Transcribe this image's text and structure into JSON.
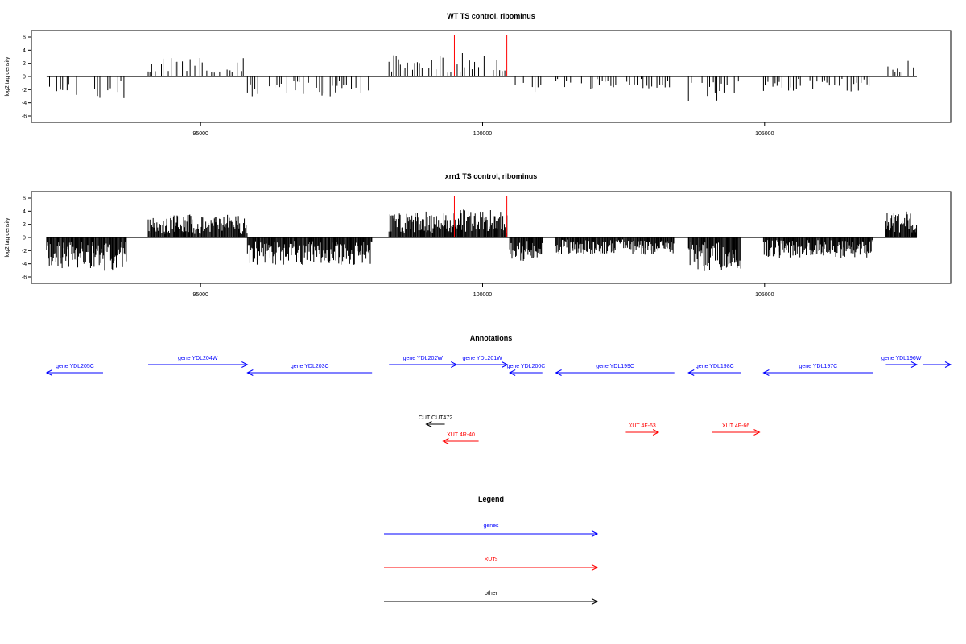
{
  "colors": {
    "gene": "#0000ff",
    "xut": "#ff0000",
    "other": "#000000",
    "marker": "#ff0000",
    "bar": "#000000"
  },
  "chart_data": [
    {
      "type": "bar",
      "title": "WT TS control, ribominus",
      "ylabel": "log2 tag density",
      "ylim": [
        -6,
        6
      ],
      "yticks": [
        -6,
        -4,
        -2,
        0,
        2,
        4,
        6
      ],
      "xlim": [
        92000,
        108300
      ],
      "xticks": [
        95000,
        100000,
        105000
      ],
      "markers": [
        99500,
        100430
      ],
      "series": [
        {
          "x": [],
          "values": []
        }
      ]
    },
    {
      "type": "bar",
      "title": "xrn1 TS control, ribominus",
      "ylabel": "log2 tag density",
      "ylim": [
        -6,
        6
      ],
      "yticks": [
        -6,
        -4,
        -2,
        0,
        2,
        4,
        6
      ],
      "xlim": [
        92000,
        108300
      ],
      "xticks": [
        95000,
        100000,
        105000
      ],
      "markers": [
        99500,
        100430
      ],
      "series": [
        {
          "x": [],
          "values": []
        }
      ]
    }
  ],
  "annotations": {
    "title": "Annotations",
    "features": [
      {
        "label": "gene YDL205C",
        "class": "gene",
        "strand": "-",
        "start": 92270,
        "end": 93270,
        "row": 1
      },
      {
        "label": "gene YDL204W",
        "class": "gene",
        "strand": "+",
        "start": 94070,
        "end": 95830,
        "row": 0
      },
      {
        "label": "gene YDL203C",
        "class": "gene",
        "strand": "-",
        "start": 95830,
        "end": 98040,
        "row": 1
      },
      {
        "label": "gene YDL202W",
        "class": "gene",
        "strand": "+",
        "start": 98340,
        "end": 99540,
        "row": 0
      },
      {
        "label": "gene YDL201W",
        "class": "gene",
        "strand": "+",
        "start": 99550,
        "end": 100440,
        "row": 0
      },
      {
        "label": "gene YDL200C",
        "class": "gene",
        "strand": "-",
        "start": 100480,
        "end": 101060,
        "row": 1
      },
      {
        "label": "gene YDL199C",
        "class": "gene",
        "strand": "-",
        "start": 101300,
        "end": 103400,
        "row": 1
      },
      {
        "label": "gene YDL198C",
        "class": "gene",
        "strand": "-",
        "start": 103650,
        "end": 104580,
        "row": 1
      },
      {
        "label": "gene YDL197C",
        "class": "gene",
        "strand": "-",
        "start": 104980,
        "end": 106920,
        "row": 1
      },
      {
        "label": "gene YDL196W",
        "class": "gene",
        "strand": "+",
        "start": 107150,
        "end": 107700,
        "row": 0
      },
      {
        "label": "",
        "class": "gene",
        "strand": "+",
        "start": 107810,
        "end": 108760,
        "row": 0
      },
      {
        "label": "CUT CUT472",
        "class": "other",
        "strand": "-",
        "start": 99000,
        "end": 99330,
        "row": 2
      },
      {
        "label": "XUT 4R-40",
        "class": "xut",
        "strand": "-",
        "start": 99300,
        "end": 99930,
        "row": 3
      },
      {
        "label": "XUT 4F-63",
        "class": "xut",
        "strand": "+",
        "start": 102540,
        "end": 103120,
        "row": 4
      },
      {
        "label": "XUT 4F-66",
        "class": "xut",
        "strand": "+",
        "start": 104070,
        "end": 104910,
        "row": 4
      }
    ]
  },
  "legend": {
    "title": "Legend",
    "items": [
      {
        "label": "genes",
        "class": "gene"
      },
      {
        "label": "XUTs",
        "class": "xut"
      },
      {
        "label": "other",
        "class": "other"
      }
    ]
  }
}
